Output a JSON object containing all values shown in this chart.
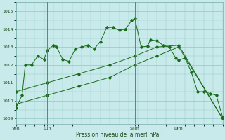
{
  "bg_color": "#c8eaea",
  "grid_color": "#90c8c8",
  "line_color": "#1a6b1a",
  "xlabel": "Pression niveau de la mer( hPa )",
  "xtick_labels": [
    "Ven",
    "Lun",
    "Sam",
    "Dim"
  ],
  "xtick_positions": [
    0,
    10,
    38,
    52
  ],
  "xlim": [
    0,
    66
  ],
  "ylim": [
    1008.7,
    1015.3
  ],
  "yticks": [
    1009,
    1010,
    1011,
    1012,
    1013,
    1014,
    1015
  ],
  "line1_x": [
    0,
    2,
    3,
    5,
    7,
    9,
    10,
    12,
    13,
    15,
    17,
    19,
    21,
    23,
    25,
    27,
    29,
    31,
    33,
    35,
    37,
    38,
    40,
    42,
    43,
    45,
    47,
    49,
    51,
    52,
    54,
    56,
    58,
    60,
    62,
    64,
    66
  ],
  "line1_y": [
    1009.6,
    1010.3,
    1012.0,
    1012.0,
    1012.5,
    1012.3,
    1012.8,
    1013.1,
    1013.0,
    1012.3,
    1012.2,
    1012.9,
    1013.0,
    1013.1,
    1012.9,
    1013.3,
    1014.1,
    1014.1,
    1013.95,
    1014.0,
    1014.5,
    1014.6,
    1013.0,
    1013.05,
    1013.4,
    1013.35,
    1013.1,
    1013.0,
    1012.4,
    1012.25,
    1012.4,
    1011.6,
    1010.5,
    1010.5,
    1010.4,
    1010.3,
    1009.1
  ],
  "line2_x": [
    0,
    10,
    20,
    30,
    38,
    45,
    52,
    66
  ],
  "line2_y": [
    1010.5,
    1011.0,
    1011.5,
    1012.0,
    1012.5,
    1013.0,
    1013.1,
    1009.0
  ],
  "line3_x": [
    0,
    10,
    20,
    30,
    38,
    45,
    52,
    66
  ],
  "line3_y": [
    1009.8,
    1010.3,
    1010.8,
    1011.3,
    1012.0,
    1012.5,
    1013.0,
    1009.0
  ],
  "vline_positions": [
    10,
    38,
    52
  ],
  "figsize": [
    3.2,
    2.0
  ],
  "dpi": 100
}
